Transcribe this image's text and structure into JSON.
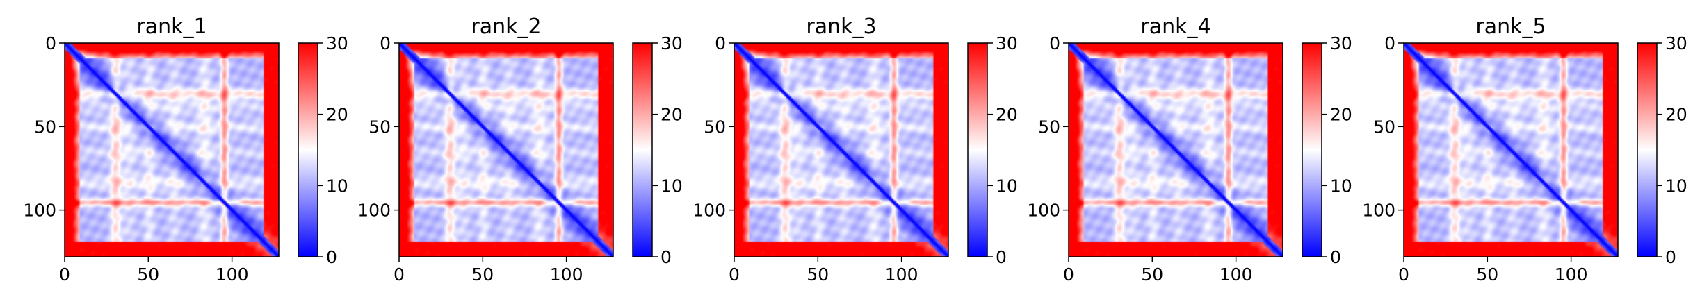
{
  "figure": {
    "colorbar_ticks": [
      "0",
      "10",
      "20",
      "30"
    ],
    "colormap": {
      "low": "#0000ff",
      "mid": "#ffffff",
      "high": "#ff0000"
    }
  },
  "chart_data": [
    {
      "type": "heatmap",
      "title": "rank_1",
      "xlabel": "",
      "ylabel": "",
      "matrix_size": 128,
      "xlim": [
        0,
        128
      ],
      "ylim": [
        128,
        0
      ],
      "x_ticks": [
        0,
        50,
        100
      ],
      "y_ticks": [
        0,
        50,
        100
      ],
      "colorbar": {
        "range": [
          0,
          30
        ],
        "ticks": [
          0,
          10,
          20,
          30
        ]
      },
      "description_values": {
        "diagonal": 0,
        "background": 4,
        "row_bands": [
          30,
          50,
          95
        ],
        "border_value": 30
      }
    },
    {
      "type": "heatmap",
      "title": "rank_2",
      "xlabel": "",
      "ylabel": "",
      "matrix_size": 128,
      "xlim": [
        0,
        128
      ],
      "ylim": [
        128,
        0
      ],
      "x_ticks": [
        0,
        50,
        100
      ],
      "y_ticks": [
        0,
        50,
        100
      ],
      "colorbar": {
        "range": [
          0,
          30
        ],
        "ticks": [
          0,
          10,
          20,
          30
        ]
      },
      "description_values": {
        "diagonal": 0,
        "background": 4,
        "row_bands": [
          30,
          50,
          95
        ],
        "border_value": 30
      }
    },
    {
      "type": "heatmap",
      "title": "rank_3",
      "xlabel": "",
      "ylabel": "",
      "matrix_size": 128,
      "xlim": [
        0,
        128
      ],
      "ylim": [
        128,
        0
      ],
      "x_ticks": [
        0,
        50,
        100
      ],
      "y_ticks": [
        0,
        50,
        100
      ],
      "colorbar": {
        "range": [
          0,
          30
        ],
        "ticks": [
          0,
          10,
          20,
          30
        ]
      },
      "description_values": {
        "diagonal": 0,
        "background": 4,
        "row_bands": [
          30,
          50,
          95
        ],
        "border_value": 30
      }
    },
    {
      "type": "heatmap",
      "title": "rank_4",
      "xlabel": "",
      "ylabel": "",
      "matrix_size": 128,
      "xlim": [
        0,
        128
      ],
      "ylim": [
        128,
        0
      ],
      "x_ticks": [
        0,
        50,
        100
      ],
      "y_ticks": [
        0,
        50,
        100
      ],
      "colorbar": {
        "range": [
          0,
          30
        ],
        "ticks": [
          0,
          10,
          20,
          30
        ]
      },
      "description_values": {
        "diagonal": 0,
        "background": 4,
        "row_bands": [
          30,
          50,
          95
        ],
        "border_value": 30
      }
    },
    {
      "type": "heatmap",
      "title": "rank_5",
      "xlabel": "",
      "ylabel": "",
      "matrix_size": 128,
      "xlim": [
        0,
        128
      ],
      "ylim": [
        128,
        0
      ],
      "x_ticks": [
        0,
        50,
        100
      ],
      "y_ticks": [
        0,
        50,
        100
      ],
      "colorbar": {
        "range": [
          0,
          30
        ],
        "ticks": [
          0,
          10,
          20,
          30
        ]
      },
      "description_values": {
        "diagonal": 0,
        "background": 4,
        "row_bands": [
          30,
          50,
          95
        ],
        "border_value": 30
      }
    }
  ]
}
